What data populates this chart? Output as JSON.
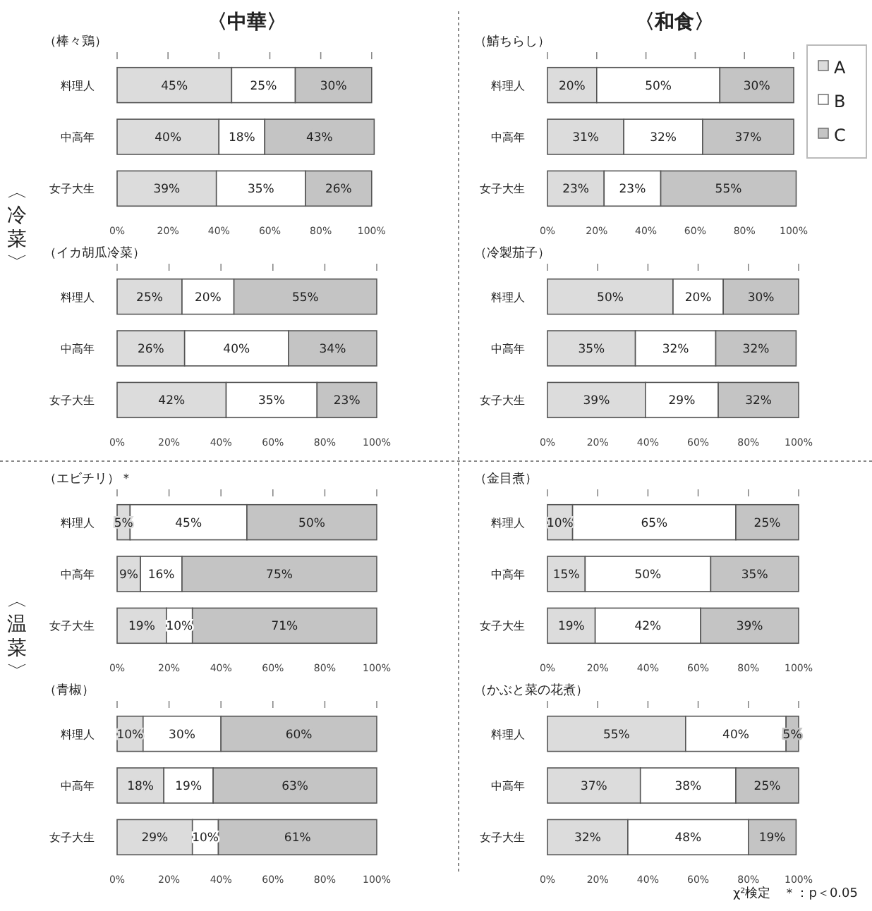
{
  "chart_data": [
    {
      "type": "bar",
      "orientation": "horizontal",
      "stacked": true,
      "title": "（棒々鶏）",
      "categories": [
        "料理人",
        "中高年",
        "女子大生"
      ],
      "xlim": [
        0,
        102
      ],
      "xticks": [
        {
          "value": 0,
          "label": "0%"
        },
        {
          "value": 20,
          "label": "20%"
        },
        {
          "value": 40,
          "label": "40%"
        },
        {
          "value": 60,
          "label": "60%"
        },
        {
          "value": 80,
          "label": "80%"
        },
        {
          "value": 100,
          "label": "100%"
        }
      ],
      "series": [
        {
          "color": "#dcdcdc",
          "values": [
            45,
            40,
            39
          ],
          "value_labels": [
            "45%",
            "40%",
            "39%"
          ]
        },
        {
          "color": "#ffffff",
          "values": [
            25,
            18,
            35
          ],
          "value_labels": [
            "25%",
            "18%",
            "35%"
          ]
        },
        {
          "color": "#c4c4c4",
          "values": [
            30,
            43,
            26
          ],
          "value_labels": [
            "30%",
            "43%",
            "26%"
          ]
        }
      ]
    },
    {
      "type": "bar",
      "orientation": "horizontal",
      "stacked": true,
      "title": "（鯖ちらし）",
      "categories": [
        "料理人",
        "中高年",
        "女子大生"
      ],
      "xlim": [
        0,
        102
      ],
      "xticks": [
        {
          "value": 0,
          "label": "0%"
        },
        {
          "value": 20,
          "label": "20%"
        },
        {
          "value": 40,
          "label": "40%"
        },
        {
          "value": 60,
          "label": "60%"
        },
        {
          "value": 80,
          "label": "80%"
        },
        {
          "value": 100,
          "label": "100%"
        }
      ],
      "legend": "right",
      "series": [
        {
          "name": "A",
          "color": "#dcdcdc",
          "values": [
            20,
            31,
            23
          ],
          "value_labels": [
            "20%",
            "31%",
            "23%"
          ]
        },
        {
          "name": "B",
          "color": "#ffffff",
          "values": [
            50,
            32,
            23
          ],
          "value_labels": [
            "50%",
            "32%",
            "23%"
          ]
        },
        {
          "name": "C",
          "color": "#c4c4c4",
          "values": [
            30,
            37,
            55
          ],
          "value_labels": [
            "30%",
            "37%",
            "55%"
          ]
        }
      ]
    },
    {
      "type": "bar",
      "orientation": "horizontal",
      "stacked": true,
      "title": "（イカ胡瓜冷菜）",
      "categories": [
        "料理人",
        "中高年",
        "女子大生"
      ],
      "xlim": [
        0,
        100
      ],
      "xticks": [
        {
          "value": 0,
          "label": "0%"
        },
        {
          "value": 20,
          "label": "20%"
        },
        {
          "value": 40,
          "label": "40%"
        },
        {
          "value": 60,
          "label": "60%"
        },
        {
          "value": 80,
          "label": "80%"
        },
        {
          "value": 100,
          "label": "100%"
        }
      ],
      "series": [
        {
          "color": "#dcdcdc",
          "values": [
            25,
            26,
            42
          ],
          "value_labels": [
            "25%",
            "26%",
            "42%"
          ]
        },
        {
          "color": "#ffffff",
          "values": [
            20,
            40,
            35
          ],
          "value_labels": [
            "20%",
            "40%",
            "35%"
          ]
        },
        {
          "color": "#c4c4c4",
          "values": [
            55,
            34,
            23
          ],
          "value_labels": [
            "55%",
            "34%",
            "23%"
          ]
        }
      ]
    },
    {
      "type": "bar",
      "orientation": "horizontal",
      "stacked": true,
      "title": "（冷製茄子）",
      "categories": [
        "料理人",
        "中高年",
        "女子大生"
      ],
      "xlim": [
        0,
        100
      ],
      "xticks": [
        {
          "value": 0,
          "label": "0%"
        },
        {
          "value": 20,
          "label": "20%"
        },
        {
          "value": 40,
          "label": "40%"
        },
        {
          "value": 60,
          "label": "60%"
        },
        {
          "value": 80,
          "label": "80%"
        },
        {
          "value": 100,
          "label": "100%"
        }
      ],
      "series": [
        {
          "color": "#dcdcdc",
          "values": [
            50,
            35,
            39
          ],
          "value_labels": [
            "50%",
            "35%",
            "39%"
          ]
        },
        {
          "color": "#ffffff",
          "values": [
            20,
            32,
            29
          ],
          "value_labels": [
            "20%",
            "32%",
            "29%"
          ]
        },
        {
          "color": "#c4c4c4",
          "values": [
            30,
            32,
            32
          ],
          "value_labels": [
            "30%",
            "32%",
            "32%"
          ]
        }
      ]
    },
    {
      "type": "bar",
      "orientation": "horizontal",
      "stacked": true,
      "title": "（エビチリ）＊",
      "categories": [
        "料理人",
        "中高年",
        "女子大生"
      ],
      "xlim": [
        0,
        100
      ],
      "xticks": [
        {
          "value": 0,
          "label": "0%"
        },
        {
          "value": 20,
          "label": "20%"
        },
        {
          "value": 40,
          "label": "40%"
        },
        {
          "value": 60,
          "label": "60%"
        },
        {
          "value": 80,
          "label": "80%"
        },
        {
          "value": 100,
          "label": "100%"
        }
      ],
      "series": [
        {
          "color": "#dcdcdc",
          "values": [
            5,
            9,
            19
          ],
          "value_labels": [
            "5%",
            "9%",
            "19%"
          ]
        },
        {
          "color": "#ffffff",
          "values": [
            45,
            16,
            10
          ],
          "value_labels": [
            "45%",
            "16%",
            "10%"
          ]
        },
        {
          "color": "#c4c4c4",
          "values": [
            50,
            75,
            71
          ],
          "value_labels": [
            "50%",
            "75%",
            "71%"
          ]
        }
      ]
    },
    {
      "type": "bar",
      "orientation": "horizontal",
      "stacked": true,
      "title": "（金目煮）",
      "categories": [
        "料理人",
        "中高年",
        "女子大生"
      ],
      "xlim": [
        0,
        100
      ],
      "xticks": [
        {
          "value": 0,
          "label": "0%"
        },
        {
          "value": 20,
          "label": "20%"
        },
        {
          "value": 40,
          "label": "40%"
        },
        {
          "value": 60,
          "label": "60%"
        },
        {
          "value": 80,
          "label": "80%"
        },
        {
          "value": 100,
          "label": "100%"
        }
      ],
      "series": [
        {
          "color": "#dcdcdc",
          "values": [
            10,
            15,
            19
          ],
          "value_labels": [
            "10%",
            "15%",
            "19%"
          ]
        },
        {
          "color": "#ffffff",
          "values": [
            65,
            50,
            42
          ],
          "value_labels": [
            "65%",
            "50%",
            "42%"
          ]
        },
        {
          "color": "#c4c4c4",
          "values": [
            25,
            35,
            39
          ],
          "value_labels": [
            "25%",
            "35%",
            "39%"
          ]
        }
      ]
    },
    {
      "type": "bar",
      "orientation": "horizontal",
      "stacked": true,
      "title": "（青椒）",
      "categories": [
        "料理人",
        "中高年",
        "女子大生"
      ],
      "xlim": [
        0,
        100
      ],
      "xticks": [
        {
          "value": 0,
          "label": "0%"
        },
        {
          "value": 20,
          "label": "20%"
        },
        {
          "value": 40,
          "label": "40%"
        },
        {
          "value": 60,
          "label": "60%"
        },
        {
          "value": 80,
          "label": "80%"
        },
        {
          "value": 100,
          "label": "100%"
        }
      ],
      "series": [
        {
          "color": "#dcdcdc",
          "values": [
            10,
            18,
            29
          ],
          "value_labels": [
            "10%",
            "18%",
            "29%"
          ]
        },
        {
          "color": "#ffffff",
          "values": [
            30,
            19,
            10
          ],
          "value_labels": [
            "30%",
            "19%",
            "10%"
          ]
        },
        {
          "color": "#c4c4c4",
          "values": [
            60,
            63,
            61
          ],
          "value_labels": [
            "60%",
            "63%",
            "61%"
          ]
        }
      ]
    },
    {
      "type": "bar",
      "orientation": "horizontal",
      "stacked": true,
      "title": "（かぶと菜の花煮）",
      "categories": [
        "料理人",
        "中高年",
        "女子大生"
      ],
      "xlim": [
        0,
        100
      ],
      "xticks": [
        {
          "value": 0,
          "label": "0%"
        },
        {
          "value": 20,
          "label": "20%"
        },
        {
          "value": 40,
          "label": "40%"
        },
        {
          "value": 60,
          "label": "60%"
        },
        {
          "value": 80,
          "label": "80%"
        },
        {
          "value": 100,
          "label": "100%"
        }
      ],
      "series": [
        {
          "color": "#dcdcdc",
          "values": [
            55,
            37,
            32
          ],
          "value_labels": [
            "55%",
            "37%",
            "32%"
          ]
        },
        {
          "color": "#ffffff",
          "values": [
            40,
            38,
            48
          ],
          "value_labels": [
            "40%",
            "38%",
            "48%"
          ]
        },
        {
          "color": "#c4c4c4",
          "values": [
            5,
            25,
            19
          ],
          "value_labels": [
            "5%",
            "25%",
            "19%"
          ]
        }
      ]
    },
    {
      "type": "other",
      "annotations": [
        "〈中華〉",
        "〈和食〉",
        "〈冷菜〉",
        "〈温菜〉",
        "χ²検定　＊：p＜0.05"
      ]
    }
  ]
}
